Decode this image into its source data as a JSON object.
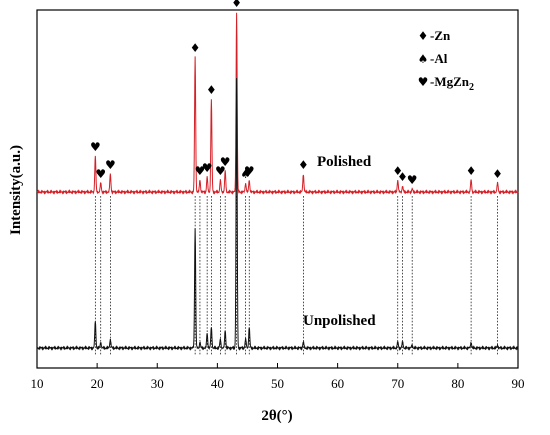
{
  "chart_data": {
    "type": "line",
    "xlabel": "2θ(°)",
    "ylabel": "Intensity(a.u.)",
    "xlim": [
      10,
      90
    ],
    "xticks": [
      10,
      20,
      30,
      40,
      50,
      60,
      70,
      80,
      90
    ],
    "grid": false,
    "legend_position": "top-right",
    "legend": [
      {
        "symbol": "♦",
        "label": "-Zn"
      },
      {
        "symbol": "♠",
        "label": "-Al"
      },
      {
        "symbol": "♥",
        "label": "-MgZn",
        "subscript": "2"
      }
    ],
    "series": [
      {
        "name": "Polished",
        "color": "#d42027",
        "baseline": 0.52,
        "peaks": [
          {
            "x": 19.7,
            "y": 0.64
          },
          {
            "x": 20.6,
            "y": 0.55
          },
          {
            "x": 22.2,
            "y": 0.58
          },
          {
            "x": 36.3,
            "y": 0.97
          },
          {
            "x": 37.1,
            "y": 0.56
          },
          {
            "x": 38.3,
            "y": 0.57
          },
          {
            "x": 39.0,
            "y": 0.83
          },
          {
            "x": 40.5,
            "y": 0.56
          },
          {
            "x": 41.3,
            "y": 0.59
          },
          {
            "x": 43.2,
            "y": 1.12
          },
          {
            "x": 44.7,
            "y": 0.55
          },
          {
            "x": 45.3,
            "y": 0.56
          },
          {
            "x": 54.3,
            "y": 0.58
          },
          {
            "x": 70.0,
            "y": 0.56
          },
          {
            "x": 70.8,
            "y": 0.54
          },
          {
            "x": 72.4,
            "y": 0.53
          },
          {
            "x": 82.2,
            "y": 0.56
          },
          {
            "x": 86.6,
            "y": 0.55
          }
        ]
      },
      {
        "name": "Unpolished",
        "color": "#111111",
        "baseline": 0.0,
        "peaks": [
          {
            "x": 19.7,
            "y": 0.09
          },
          {
            "x": 20.6,
            "y": 0.02
          },
          {
            "x": 22.2,
            "y": 0.03
          },
          {
            "x": 36.3,
            "y": 0.4
          },
          {
            "x": 37.1,
            "y": 0.02
          },
          {
            "x": 38.3,
            "y": 0.05
          },
          {
            "x": 39.0,
            "y": 0.07
          },
          {
            "x": 40.5,
            "y": 0.03
          },
          {
            "x": 41.3,
            "y": 0.06
          },
          {
            "x": 43.2,
            "y": 0.9
          },
          {
            "x": 44.7,
            "y": 0.03
          },
          {
            "x": 45.3,
            "y": 0.07
          },
          {
            "x": 54.3,
            "y": 0.02
          },
          {
            "x": 70.0,
            "y": 0.02
          },
          {
            "x": 70.8,
            "y": 0.02
          },
          {
            "x": 72.4,
            "y": 0.01
          },
          {
            "x": 82.2,
            "y": 0.02
          },
          {
            "x": 86.6,
            "y": 0.01
          }
        ]
      }
    ],
    "annotations": [
      {
        "symbol": "♥",
        "x": 19.7
      },
      {
        "symbol": "♥",
        "x": 20.6
      },
      {
        "symbol": "♥",
        "x": 22.2
      },
      {
        "symbol": "♦",
        "x": 36.3
      },
      {
        "symbol": "♥",
        "x": 37.1
      },
      {
        "symbol": "♥",
        "x": 38.3
      },
      {
        "symbol": "♦",
        "x": 39.0
      },
      {
        "symbol": "♥",
        "x": 40.5
      },
      {
        "symbol": "♥",
        "x": 41.3
      },
      {
        "symbol": "♦",
        "x": 43.2
      },
      {
        "symbol": "♠",
        "x": 44.7
      },
      {
        "symbol": "♥",
        "x": 45.3
      },
      {
        "symbol": "♦",
        "x": 54.3
      },
      {
        "symbol": "♦",
        "x": 70.0
      },
      {
        "symbol": "♦",
        "x": 70.8
      },
      {
        "symbol": "♥",
        "x": 72.4
      },
      {
        "symbol": "♦",
        "x": 82.2
      },
      {
        "symbol": "♦",
        "x": 86.6
      }
    ]
  }
}
